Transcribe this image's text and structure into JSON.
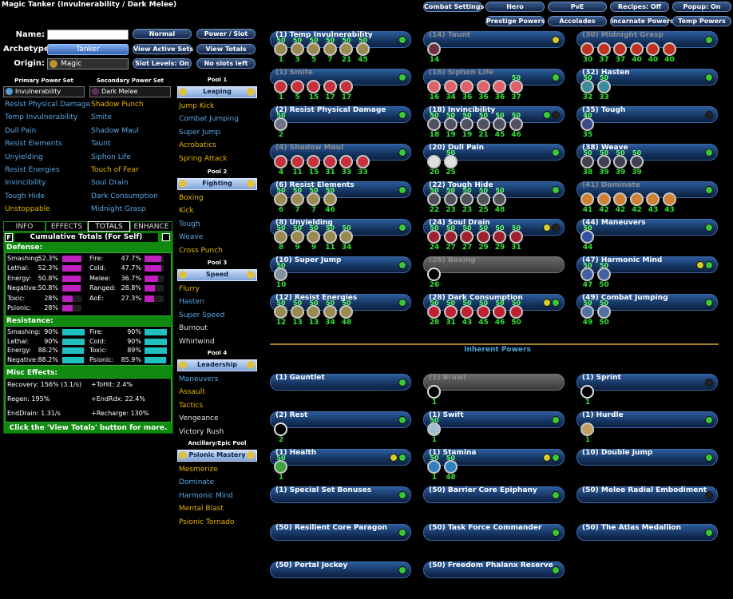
{
  "title": "Magic Tanker (Invulnerability / Dark Melee)",
  "top_buttons": [
    "Combat Settings",
    "Hero",
    "PvE",
    "Recipes: Off",
    "Popup: On",
    "Prestige Powers",
    "Accolades",
    "Incarnate Powers",
    "Temp Powers"
  ],
  "form": {
    "name_label": "Name:",
    "archetype_label": "Archetype:",
    "archetype": "Tanker",
    "origin_label": "Origin:",
    "origin": "Magic"
  },
  "buttons": [
    "Normal",
    "Power / Slot",
    "View Active Sets",
    "View Totals",
    "Slot Levels: On",
    "No slots left"
  ],
  "sets": [
    {
      "heading": "Primary Power Set",
      "name": "Invulnerability",
      "powers": [
        {
          "name": "Resist Physical Damage",
          "color": "#5aa8e6"
        },
        {
          "name": "Temp Invulnerability",
          "color": "#5aa8e6"
        },
        {
          "name": "Dull Pain",
          "color": "#5aa8e6"
        },
        {
          "name": "Resist Elements",
          "color": "#5aa8e6"
        },
        {
          "name": "Unyielding",
          "color": "#5aa8e6"
        },
        {
          "name": "Resist Energies",
          "color": "#5aa8e6"
        },
        {
          "name": "Invincibility",
          "color": "#5aa8e6"
        },
        {
          "name": "Tough Hide",
          "color": "#5aa8e6"
        },
        {
          "name": "Unstoppable",
          "color": "#e8b400"
        }
      ]
    },
    {
      "heading": "Secondary Power Set",
      "name": "Dark Melee",
      "powers": [
        {
          "name": "Shadow Punch",
          "color": "#e8b400"
        },
        {
          "name": "Smite",
          "color": "#5aa8e6"
        },
        {
          "name": "Shadow Maul",
          "color": "#5aa8e6"
        },
        {
          "name": "Taunt",
          "color": "#5aa8e6"
        },
        {
          "name": "Siphon Life",
          "color": "#5aa8e6"
        },
        {
          "name": "Touch of Fear",
          "color": "#e8b400"
        },
        {
          "name": "Soul Drain",
          "color": "#5aa8e6"
        },
        {
          "name": "Dark Consumption",
          "color": "#5aa8e6"
        },
        {
          "name": "Midnight Grasp",
          "color": "#5aa8e6"
        }
      ]
    }
  ],
  "pools": [
    {
      "heading": "Pool 1",
      "name": "Leaping",
      "powers": [
        {
          "name": "Jump Kick",
          "color": "#e8b400"
        },
        {
          "name": "Combat Jumping",
          "color": "#5aa8e6"
        },
        {
          "name": "Super Jump",
          "color": "#5aa8e6"
        },
        {
          "name": "Acrobatics",
          "color": "#e8b400"
        },
        {
          "name": "Spring Attack",
          "color": "#e8b400"
        }
      ]
    },
    {
      "heading": "Pool 2",
      "name": "Fighting",
      "powers": [
        {
          "name": "Boxing",
          "color": "#e8b400"
        },
        {
          "name": "Kick",
          "color": "#e8b400"
        },
        {
          "name": "Tough",
          "color": "#5aa8e6"
        },
        {
          "name": "Weave",
          "color": "#5aa8e6"
        },
        {
          "name": "Cross Punch",
          "color": "#e8b400"
        }
      ]
    },
    {
      "heading": "Pool 3",
      "name": "Speed",
      "powers": [
        {
          "name": "Flurry",
          "color": "#e8b400"
        },
        {
          "name": "Hasten",
          "color": "#5aa8e6"
        },
        {
          "name": "Super Speed",
          "color": "#5aa8e6"
        },
        {
          "name": "Burnout",
          "color": "#e0e0e0"
        },
        {
          "name": "Whirlwind",
          "color": "#e0e0e0"
        }
      ]
    },
    {
      "heading": "Pool 4",
      "name": "Leadership",
      "powers": [
        {
          "name": "Maneuvers",
          "color": "#5aa8e6"
        },
        {
          "name": "Assault",
          "color": "#e8b400"
        },
        {
          "name": "Tactics",
          "color": "#e8b400"
        },
        {
          "name": "Vengeance",
          "color": "#e0e0e0"
        },
        {
          "name": "Victory Rush",
          "color": "#e0e0e0"
        }
      ]
    },
    {
      "heading": "Ancillary/Epic Pool",
      "name": "Psionic Mastery",
      "powers": [
        {
          "name": "Mesmerize",
          "color": "#e8b400"
        },
        {
          "name": "Dominate",
          "color": "#5aa8e6"
        },
        {
          "name": "Harmonic Mind",
          "color": "#5aa8e6"
        },
        {
          "name": "Mental Blast",
          "color": "#e8b400"
        },
        {
          "name": "Psionic Tornado",
          "color": "#e8b400"
        }
      ]
    }
  ],
  "tabs": [
    "INFO",
    "EFFECTS",
    "TOTALS",
    "ENHANCE"
  ],
  "active_tab": 2,
  "totals": {
    "f": "F",
    "title": "Cumulative Totals (For Self)",
    "defense": {
      "heading": "Defense:",
      "left": [
        {
          "name": "Smashing:",
          "value": 52.3,
          "label": "52.3%"
        },
        {
          "name": "Lethal:",
          "value": 52.3,
          "label": "52.3%"
        },
        {
          "name": "Energy:",
          "value": 50.8,
          "label": "50.8%"
        },
        {
          "name": "Negative:",
          "value": 50.8,
          "label": "50.8%"
        },
        {
          "name": "Toxic:",
          "value": 28,
          "label": "28%"
        },
        {
          "name": "Psionic:",
          "value": 28,
          "label": "28%"
        }
      ],
      "right": [
        {
          "name": "Fire:",
          "value": 47.7,
          "label": "47.7%"
        },
        {
          "name": "Cold:",
          "value": 47.7,
          "label": "47.7%"
        },
        {
          "name": "Melee:",
          "value": 36.7,
          "label": "36.7%"
        },
        {
          "name": "Ranged:",
          "value": 28.8,
          "label": "28.8%"
        },
        {
          "name": "AoE:",
          "value": 27.3,
          "label": "27.3%"
        }
      ]
    },
    "resistance": {
      "heading": "Resistance:",
      "left": [
        {
          "name": "Smashing:",
          "value": 90,
          "label": "90%"
        },
        {
          "name": "Lethal:",
          "value": 90,
          "label": "90%"
        },
        {
          "name": "Energy:",
          "value": 88.2,
          "label": "88.2%"
        },
        {
          "name": "Negative:",
          "value": 88.2,
          "label": "88.2%"
        }
      ],
      "right": [
        {
          "name": "Fire:",
          "value": 90,
          "label": "90%"
        },
        {
          "name": "Cold:",
          "value": 90,
          "label": "90%"
        },
        {
          "name": "Toxic:",
          "value": 89,
          "label": "89%"
        },
        {
          "name": "Psionic:",
          "value": 85.9,
          "label": "85.9%"
        }
      ]
    },
    "misc": {
      "heading": "Misc Effects:",
      "left": [
        "Recovery: 156% (3.1/s)",
        "Regen: 195%",
        "EndDrain: 1.31/s"
      ],
      "right": [
        "+ToHit: 2.4%",
        "+EndRdx: 22.4%",
        "+Recharge: 130%"
      ]
    },
    "footer": "Click the 'View Totals' button for more."
  },
  "build": {
    "powers": [
      {
        "name": "(1) Temp Invulnerability",
        "levels": [
          1,
          3,
          5,
          7,
          21,
          45
        ],
        "enh": [
          50,
          50,
          50,
          50,
          50,
          50
        ],
        "icon": "#9a8a50",
        "lights": [
          "#38c838"
        ]
      },
      {
        "name": "(1) Smite",
        "levels": [
          1,
          5,
          15,
          17,
          17
        ],
        "enh": [],
        "icon": "#c8303c",
        "lights": [
          "#38c838"
        ],
        "dim": true
      },
      {
        "name": "(2) Resist Physical Damage",
        "levels": [
          2
        ],
        "enh": [
          50
        ],
        "icon": "#707088",
        "lights": [
          "#38c838"
        ]
      },
      {
        "name": "(4) Shadow Maul",
        "levels": [
          4,
          11,
          15,
          31,
          33,
          33
        ],
        "enh": [],
        "icon": "#c8303c",
        "lights": [
          "#38c838"
        ],
        "dim": true
      },
      {
        "name": "(6) Resist Elements",
        "levels": [
          6,
          7,
          7,
          46
        ],
        "enh": [
          50,
          50,
          50,
          50
        ],
        "icon": "#9a8a50",
        "lights": [
          "#38c838"
        ]
      },
      {
        "name": "(8) Unyielding",
        "levels": [
          8,
          9,
          9,
          11,
          34
        ],
        "enh": [
          50,
          50,
          50,
          50,
          50
        ],
        "icon": "#9a8a50",
        "lights": [
          "#38c838"
        ]
      },
      {
        "name": "(10) Super Jump",
        "levels": [
          10
        ],
        "enh": [
          50
        ],
        "icon": "#8090a0",
        "lights": [
          "#38c838"
        ]
      },
      {
        "name": "(12) Resist Energies",
        "levels": [
          12,
          13,
          13,
          34,
          48
        ],
        "enh": [
          50,
          50,
          50,
          50,
          50
        ],
        "icon": "#9a8a50",
        "lights": [
          "#38c838"
        ]
      },
      {
        "name": "(14) Taunt",
        "levels": [
          14
        ],
        "enh": [],
        "icon": "#703040",
        "lights": [
          "#d8cc2a"
        ],
        "dim": true
      },
      {
        "name": "(16) Siphon Life",
        "levels": [
          16,
          34,
          36,
          36,
          36,
          37
        ],
        "enh": [
          null,
          null,
          null,
          null,
          null,
          50
        ],
        "icon": "#e06068",
        "lights": [
          "#38c838"
        ],
        "dim": true
      },
      {
        "name": "(18) Invincibility",
        "levels": [
          18,
          19,
          19,
          21,
          45,
          46
        ],
        "enh": [
          50,
          50,
          50,
          50,
          50,
          50
        ],
        "icon": "#505060",
        "lights": [
          "#38c838",
          "#222222"
        ]
      },
      {
        "name": "(20) Dull Pain",
        "levels": [
          20,
          25
        ],
        "enh": [
          null,
          50
        ],
        "icon": "#e0e0e0",
        "lights": [
          "#38c838"
        ]
      },
      {
        "name": "(22) Tough Hide",
        "levels": [
          22,
          23,
          23,
          25,
          48
        ],
        "enh": [
          50,
          50,
          50,
          50,
          50
        ],
        "icon": "#505058",
        "lights": [
          "#38c838"
        ]
      },
      {
        "name": "(24) Soul Drain",
        "levels": [
          24,
          27,
          27,
          29,
          29,
          31
        ],
        "enh": [
          50,
          50,
          50,
          50,
          50,
          50
        ],
        "icon": "#a02030",
        "lights": [
          "#d8cc2a",
          "#222222"
        ]
      },
      {
        "name": "(26) Boxing",
        "levels": [
          26
        ],
        "enh": [],
        "icon": null,
        "lights": [],
        "disabled": true
      },
      {
        "name": "(28) Dark Consumption",
        "levels": [
          28,
          31,
          43,
          45,
          46,
          50
        ],
        "enh": [
          50,
          50,
          50,
          50,
          50,
          50
        ],
        "icon": "#c02030",
        "lights": [
          "#d8cc2a",
          "#38c838"
        ]
      },
      {
        "name": "(30) Midnight Grasp",
        "levels": [
          30,
          37,
          37,
          40,
          40,
          40
        ],
        "enh": [],
        "icon": "#c03020",
        "lights": [
          "#38c838"
        ],
        "dim": true
      },
      {
        "name": "(32) Hasten",
        "levels": [
          32,
          33
        ],
        "enh": [
          50,
          50
        ],
        "icon": "#3a8a9a",
        "lights": [
          "#38c838"
        ]
      },
      {
        "name": "(35) Tough",
        "levels": [
          35
        ],
        "enh": [
          40
        ],
        "icon": "#3a4a8a",
        "lights": [
          "#222222"
        ]
      },
      {
        "name": "(38) Weave",
        "levels": [
          38,
          39,
          39,
          39
        ],
        "enh": [
          50,
          50,
          50,
          50
        ],
        "icon": "#404050",
        "lights": [
          "#38c838"
        ]
      },
      {
        "name": "(41) Dominate",
        "levels": [
          41,
          42,
          42,
          42,
          43,
          43
        ],
        "enh": [],
        "icon": "#d08030",
        "lights": [
          "#38c838"
        ],
        "dim": true
      },
      {
        "name": "(44) Maneuvers",
        "levels": [
          44
        ],
        "enh": [
          50
        ],
        "icon": "#3050a0",
        "lights": [
          "#38c838"
        ]
      },
      {
        "name": "(47) Harmonic Mind",
        "levels": [
          47,
          50
        ],
        "enh": [
          50,
          50
        ],
        "icon": "#4060a0",
        "lights": [
          "#d8cc2a",
          "#38c838"
        ]
      },
      {
        "name": "(49) Combat Jumping",
        "levels": [
          49,
          50
        ],
        "enh": [
          50,
          50
        ],
        "icon": "#5070a0",
        "lights": [
          "#38c838"
        ]
      }
    ],
    "inherent_heading": "Inherent Powers",
    "inherent": [
      {
        "name": "(1) Gauntlet",
        "levels": [],
        "enh": [],
        "icon": null,
        "lights": [
          "#38c838"
        ]
      },
      {
        "name": "(1) Brawl",
        "levels": [
          1
        ],
        "enh": [],
        "icon": null,
        "lights": [],
        "disabled": true
      },
      {
        "name": "(1) Sprint",
        "levels": [
          1
        ],
        "enh": [],
        "icon": null,
        "lights": [
          "#222222"
        ]
      },
      {
        "name": "(2) Rest",
        "levels": [
          2
        ],
        "enh": [],
        "icon": null,
        "lights": [
          "#38c838"
        ]
      },
      {
        "name": "(1) Swift",
        "levels": [
          1
        ],
        "enh": [
          50
        ],
        "icon": "#a0c0d0",
        "lights": [
          "#38c838"
        ]
      },
      {
        "name": "(1) Hurdle",
        "levels": [
          1
        ],
        "enh": [],
        "icon": "#c0a060",
        "lights": [
          "#38c838"
        ]
      },
      {
        "name": "(1) Health",
        "levels": [
          1
        ],
        "enh": [
          50
        ],
        "icon": "#40a040",
        "lights": [
          "#d8cc2a",
          "#38c838"
        ]
      },
      {
        "name": "(1) Stamina",
        "levels": [
          1,
          48
        ],
        "enh": [
          50,
          50
        ],
        "icon": "#3080c0",
        "lights": [
          "#d8cc2a",
          "#38c838"
        ]
      },
      {
        "name": "(10) Double Jump",
        "levels": [],
        "enh": [],
        "icon": null,
        "lights": [
          "#38c838"
        ]
      },
      {
        "name": "(1) Special Set Bonuses",
        "levels": [],
        "enh": [],
        "icon": null,
        "lights": [
          "#38c838"
        ]
      },
      {
        "name": "(50) Barrier Core Epiphany",
        "levels": [],
        "enh": [],
        "icon": null,
        "lights": [
          "#38c838"
        ]
      },
      {
        "name": "(50) Melee Radial Embodiment",
        "levels": [],
        "enh": [],
        "icon": null,
        "lights": [
          "#222222"
        ]
      },
      {
        "name": "(50) Resilient Core Paragon",
        "levels": [],
        "enh": [],
        "icon": null,
        "lights": [
          "#38c838"
        ]
      },
      {
        "name": "(50) Task Force Commander",
        "levels": [],
        "enh": [],
        "icon": null,
        "lights": [
          "#38c838"
        ]
      },
      {
        "name": "(50) The Atlas Medallion",
        "levels": [],
        "enh": [],
        "icon": null,
        "lights": [
          "#38c838"
        ]
      },
      {
        "name": "(50) Portal Jockey",
        "levels": [],
        "enh": [],
        "icon": null,
        "lights": [
          "#38c838"
        ]
      },
      {
        "name": "(50) Freedom Phalanx Reserve",
        "levels": [],
        "enh": [],
        "icon": null,
        "lights": [
          "#38c838"
        ]
      }
    ]
  }
}
